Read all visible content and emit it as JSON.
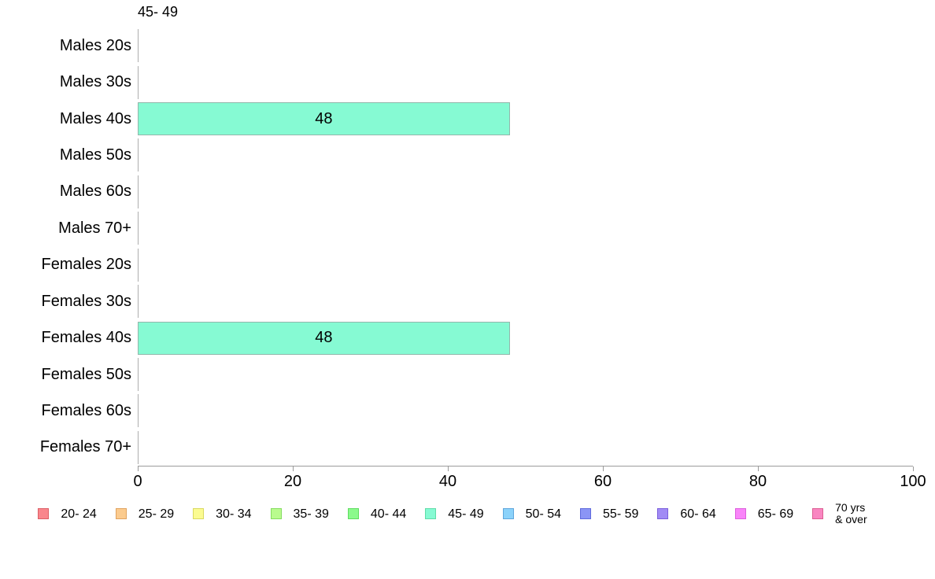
{
  "chart_data": {
    "type": "bar",
    "orientation": "horizontal",
    "title": "45- 49",
    "categories": [
      "Males 20s",
      "Males 30s",
      "Males 40s",
      "Males 50s",
      "Males 60s",
      "Males 70+",
      "Females 20s",
      "Females 30s",
      "Females 40s",
      "Females 50s",
      "Females 60s",
      "Females 70+"
    ],
    "values": [
      0,
      0,
      48,
      0,
      0,
      0,
      0,
      0,
      48,
      0,
      0,
      0
    ],
    "xlim": [
      0,
      100
    ],
    "x_ticks": [
      0,
      20,
      40,
      60,
      80,
      100
    ],
    "grid": false,
    "legend_position": "bottom",
    "colors": {
      "bar_fill": "#86FAD3",
      "bar_border": "#92B7AB",
      "axis": "#9B9B9B",
      "zero_line": "#ADADAD"
    },
    "legend": [
      {
        "label": "20- 24",
        "fill": "#F9868C",
        "border": "#DC5F66"
      },
      {
        "label": "25- 29",
        "fill": "#FBCB8E",
        "border": "#E0A35F"
      },
      {
        "label": "30- 34",
        "fill": "#FBFB91",
        "border": "#D9D960"
      },
      {
        "label": "35- 39",
        "fill": "#B9FB8E",
        "border": "#84DC5F"
      },
      {
        "label": "40- 44",
        "fill": "#8BFA8C",
        "border": "#5FDC60"
      },
      {
        "label": "45- 49",
        "fill": "#86FAD3",
        "border": "#5FDCA8"
      },
      {
        "label": "50- 54",
        "fill": "#8BD2FA",
        "border": "#5FA6DC"
      },
      {
        "label": "55- 59",
        "fill": "#8B95F5",
        "border": "#5F6ADC"
      },
      {
        "label": "60- 64",
        "fill": "#A18BF5",
        "border": "#7A5FDC"
      },
      {
        "label": "65- 69",
        "fill": "#F984F9",
        "border": "#DC5FDC"
      },
      {
        "label": "70 yrs\n& over",
        "fill": "#F986C1",
        "border": "#DC5F92"
      }
    ]
  }
}
